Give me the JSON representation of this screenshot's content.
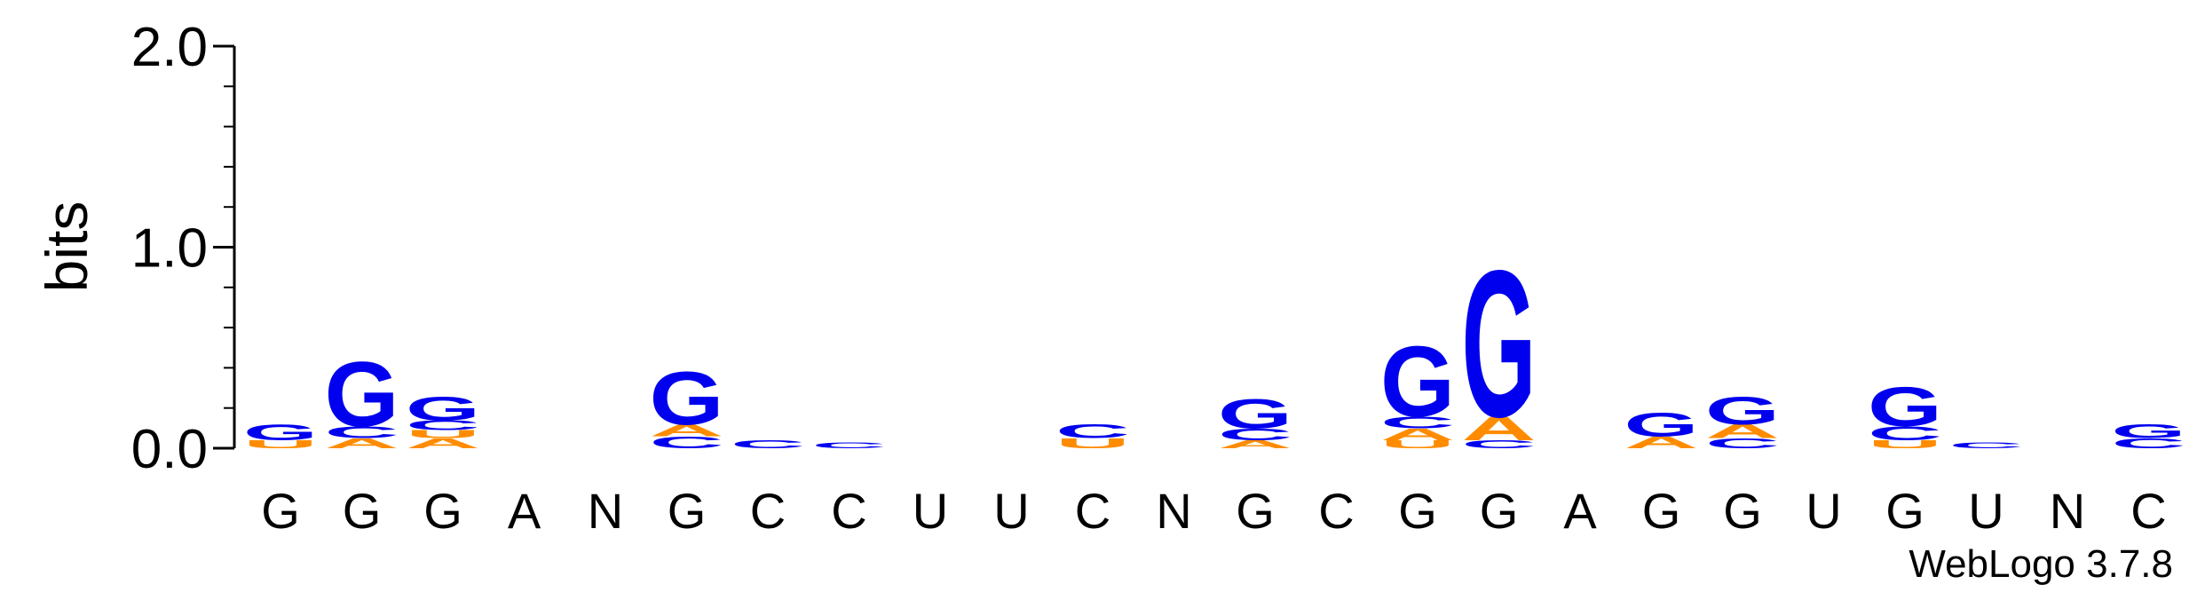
{
  "chart_data": {
    "type": "sequence-logo",
    "ylabel": "bits",
    "ylim": [
      0,
      2.0
    ],
    "yticks": [
      "0.0",
      "1.0",
      "2.0"
    ],
    "footer": "WebLogo 3.7.8",
    "colors": {
      "G": "#0000ee",
      "C": "#0000ee",
      "A": "#ff8c00",
      "U": "#ff8c00"
    },
    "positions": [
      "G",
      "G",
      "G",
      "A",
      "N",
      "G",
      "C",
      "C",
      "U",
      "U",
      "C",
      "N",
      "G",
      "C",
      "G",
      "G",
      "A",
      "G",
      "G",
      "U",
      "G",
      "U",
      "N",
      "C"
    ],
    "stacks": [
      [
        {
          "letter": "U",
          "height": 0.04
        },
        {
          "letter": "G",
          "height": 0.08
        }
      ],
      [
        {
          "letter": "A",
          "height": 0.05
        },
        {
          "letter": "C",
          "height": 0.06
        },
        {
          "letter": "G",
          "height": 0.33
        }
      ],
      [
        {
          "letter": "A",
          "height": 0.05
        },
        {
          "letter": "U",
          "height": 0.04
        },
        {
          "letter": "C",
          "height": 0.05
        },
        {
          "letter": "G",
          "height": 0.12
        }
      ],
      [],
      [],
      [
        {
          "letter": "C",
          "height": 0.06
        },
        {
          "letter": "A",
          "height": 0.06
        },
        {
          "letter": "G",
          "height": 0.27
        }
      ],
      [
        {
          "letter": "C",
          "height": 0.04
        }
      ],
      [
        {
          "letter": "C",
          "height": 0.03
        }
      ],
      [],
      [],
      [
        {
          "letter": "U",
          "height": 0.05
        },
        {
          "letter": "C",
          "height": 0.07
        }
      ],
      [],
      [
        {
          "letter": "A",
          "height": 0.04
        },
        {
          "letter": "C",
          "height": 0.06
        },
        {
          "letter": "G",
          "height": 0.15
        }
      ],
      [],
      [
        {
          "letter": "U",
          "height": 0.04
        },
        {
          "letter": "A",
          "height": 0.06
        },
        {
          "letter": "C",
          "height": 0.06
        },
        {
          "letter": "G",
          "height": 0.36
        }
      ],
      [
        {
          "letter": "C",
          "height": 0.04
        },
        {
          "letter": "A",
          "height": 0.12
        },
        {
          "letter": "G",
          "height": 0.75
        }
      ],
      [],
      [
        {
          "letter": "A",
          "height": 0.06
        },
        {
          "letter": "G",
          "height": 0.12
        }
      ],
      [
        {
          "letter": "C",
          "height": 0.05
        },
        {
          "letter": "A",
          "height": 0.07
        },
        {
          "letter": "G",
          "height": 0.14
        }
      ],
      [],
      [
        {
          "letter": "U",
          "height": 0.04
        },
        {
          "letter": "C",
          "height": 0.07
        },
        {
          "letter": "G",
          "height": 0.2
        }
      ],
      [
        {
          "letter": "C",
          "height": 0.03
        }
      ],
      [],
      [
        {
          "letter": "C",
          "height": 0.05
        },
        {
          "letter": "G",
          "height": 0.07
        }
      ]
    ]
  }
}
